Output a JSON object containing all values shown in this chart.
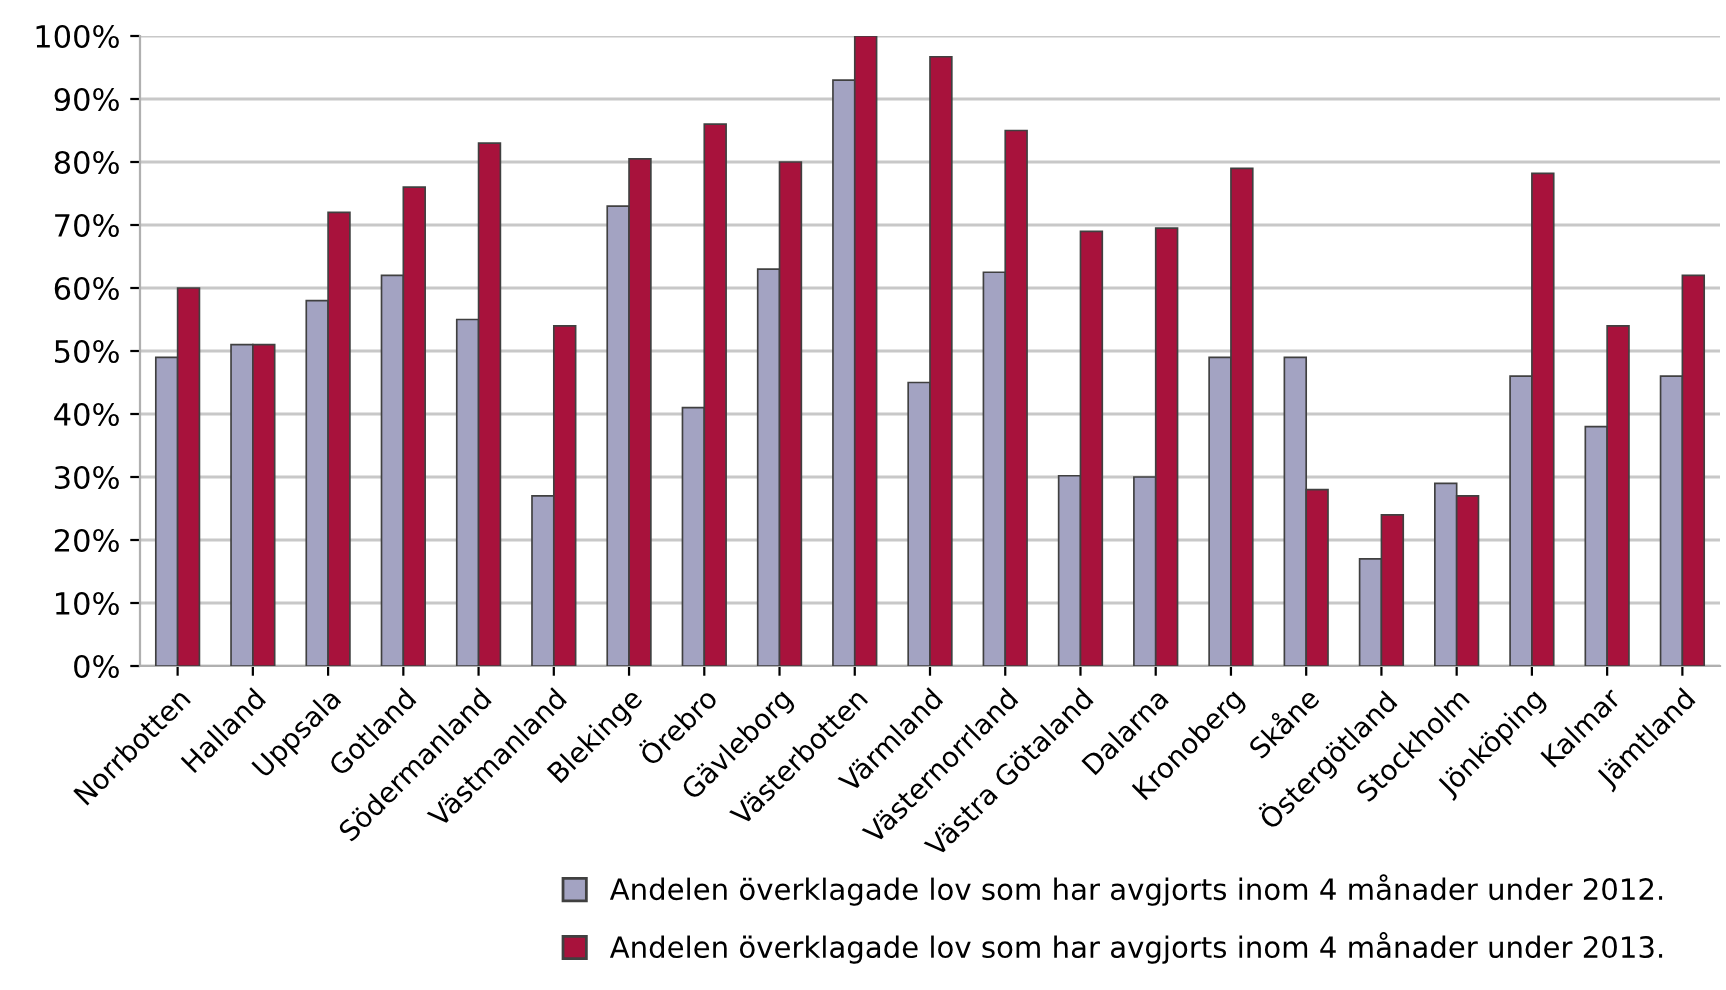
{
  "chart_data": {
    "type": "bar",
    "categories": [
      "Norrbotten",
      "Halland",
      "Uppsala",
      "Gotland",
      "Södermanland",
      "Västmanland",
      "Blekinge",
      "Örebro",
      "Gävleborg",
      "Västerbotten",
      "Värmland",
      "Västernorrland",
      "Västra Götaland",
      "Dalarna",
      "Kronoberg",
      "Skåne",
      "Östergötland",
      "Stockholm",
      "Jönköping",
      "Kalmar",
      "Jämtland"
    ],
    "series": [
      {
        "name": "Andelen överklagade lov som har avgjorts inom 4 månader under 2012.",
        "color": "#a3a3c2",
        "values": [
          49,
          51,
          58,
          62,
          55,
          27,
          73,
          41,
          63,
          93,
          45,
          62.5,
          30.2,
          30,
          49,
          49,
          17,
          29,
          46,
          38,
          46
        ]
      },
      {
        "name": "Andelen överklagade lov som har avgjorts inom 4 månader under 2013.",
        "color": "#a8123c",
        "values": [
          60,
          51,
          72,
          76,
          83,
          54,
          80.5,
          86,
          80,
          100,
          96.7,
          85,
          69,
          69.5,
          79,
          28,
          24,
          27,
          78.2,
          54,
          62
        ]
      }
    ],
    "ylim": [
      0,
      100
    ],
    "yticks": [
      {
        "value": 0,
        "label": "0%"
      },
      {
        "value": 10,
        "label": "10%"
      },
      {
        "value": 20,
        "label": "20%"
      },
      {
        "value": 30,
        "label": "30%"
      },
      {
        "value": 40,
        "label": "40%"
      },
      {
        "value": 50,
        "label": "50%"
      },
      {
        "value": 60,
        "label": "60%"
      },
      {
        "value": 70,
        "label": "70%"
      },
      {
        "value": 80,
        "label": "80%"
      },
      {
        "value": 90,
        "label": "90%"
      },
      {
        "value": 100,
        "label": "100%"
      }
    ],
    "grid": "y",
    "legend": "bottom right"
  }
}
